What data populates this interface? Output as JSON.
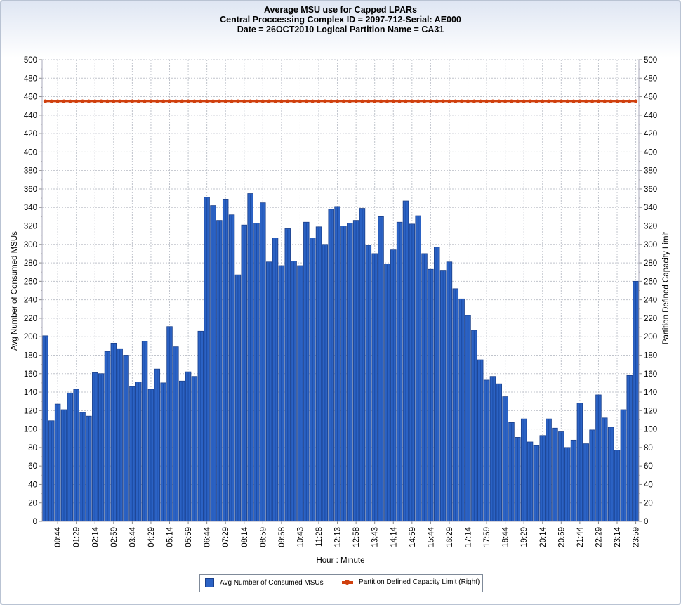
{
  "chart_data": {
    "type": "bar",
    "title": "Average MSU use for Capped LPARs",
    "subtitle_1": "Central Proccessing Complex ID = 2097-712-Serial: AE000",
    "subtitle_2": "Date = 26OCT2010 Logical Partition Name = CA31",
    "xlabel": "Hour : Minute",
    "ylabel": "Avg Number of Consumed MSUs",
    "ylabel_right": "Partition Defined Capacity Limit",
    "ylim": [
      0,
      500
    ],
    "y_ticks": [
      0,
      20,
      40,
      60,
      80,
      100,
      120,
      140,
      160,
      180,
      200,
      220,
      240,
      260,
      280,
      300,
      320,
      340,
      360,
      380,
      400,
      420,
      440,
      460,
      480,
      500
    ],
    "x_tick_labels": [
      "00:44",
      "01:29",
      "02:14",
      "02:59",
      "03:44",
      "04:29",
      "05:14",
      "05:59",
      "06:44",
      "07:29",
      "08:14",
      "08:59",
      "09:58",
      "10:43",
      "11:28",
      "12:13",
      "12:58",
      "13:43",
      "14:14",
      "14:59",
      "15:44",
      "16:29",
      "17:14",
      "17:59",
      "18:44",
      "19:29",
      "20:14",
      "20:59",
      "21:44",
      "22:29",
      "23:14",
      "23:59"
    ],
    "grid": true,
    "legend_position": "bottom",
    "series": [
      {
        "name": "Avg Number of Consumed MSUs",
        "type": "bar",
        "color": "#2b62c4",
        "values": [
          201,
          109,
          127,
          121,
          139,
          143,
          118,
          114,
          161,
          160,
          184,
          193,
          187,
          180,
          146,
          151,
          195,
          143,
          165,
          150,
          211,
          189,
          152,
          162,
          157,
          206,
          351,
          342,
          326,
          349,
          332,
          267,
          321,
          355,
          323,
          345,
          281,
          307,
          277,
          317,
          282,
          277,
          324,
          307,
          319,
          300,
          338,
          341,
          320,
          323,
          326,
          339,
          299,
          290,
          330,
          279,
          294,
          324,
          347,
          322,
          331,
          290,
          273,
          297,
          272,
          281,
          252,
          241,
          223,
          207,
          175,
          153,
          157,
          149,
          135,
          107,
          91,
          111,
          86,
          82,
          93,
          111,
          101,
          97,
          80,
          88,
          128,
          84,
          99,
          137,
          112,
          102,
          77,
          121,
          158,
          260
        ]
      },
      {
        "name": "Partition Defined Capacity Limit (Right)",
        "type": "line",
        "color": "#d0400e",
        "value": 455
      }
    ]
  }
}
